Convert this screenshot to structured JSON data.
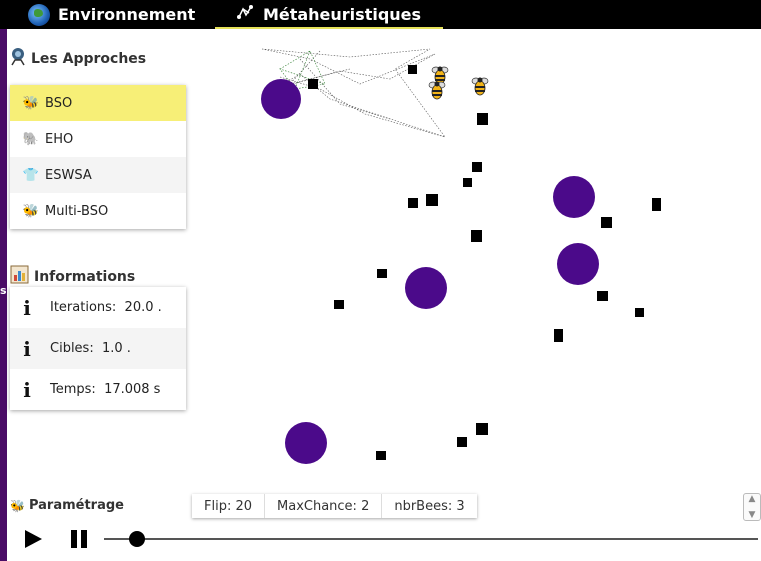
{
  "tabs": [
    {
      "label": "Environnement",
      "icon": "globe-icon"
    },
    {
      "label": "Métaheuristiques",
      "icon": "network-icon",
      "active": true
    }
  ],
  "sidebar": {
    "left_edge_text": "s",
    "approaches": {
      "title": "Les Approches",
      "items": [
        {
          "label": "BSO",
          "icon": "bee-icon",
          "active": true
        },
        {
          "label": "EHO",
          "icon": "elephant-icon"
        },
        {
          "label": "ESWSA",
          "icon": "shirt-icon"
        },
        {
          "label": "Multi-BSO",
          "icon": "bee-icon"
        }
      ]
    },
    "informations": {
      "title": "Informations",
      "items": [
        {
          "label": "Iterations:  20.0 ."
        },
        {
          "label": "Cibles:  1.0 ."
        },
        {
          "label": "Temps:  17.008 s"
        }
      ]
    },
    "parametrage": {
      "title": "Paramétrage"
    }
  },
  "params": [
    {
      "label": "Flip: 20"
    },
    {
      "label": "MaxChance: 2"
    },
    {
      "label": "nbrBees: 3"
    }
  ],
  "player": {
    "slider_value": 0.05
  },
  "colors": {
    "accent_yellow": "#f7ef77",
    "target_purple": "#4b0a8a",
    "topbar": "#000000"
  }
}
